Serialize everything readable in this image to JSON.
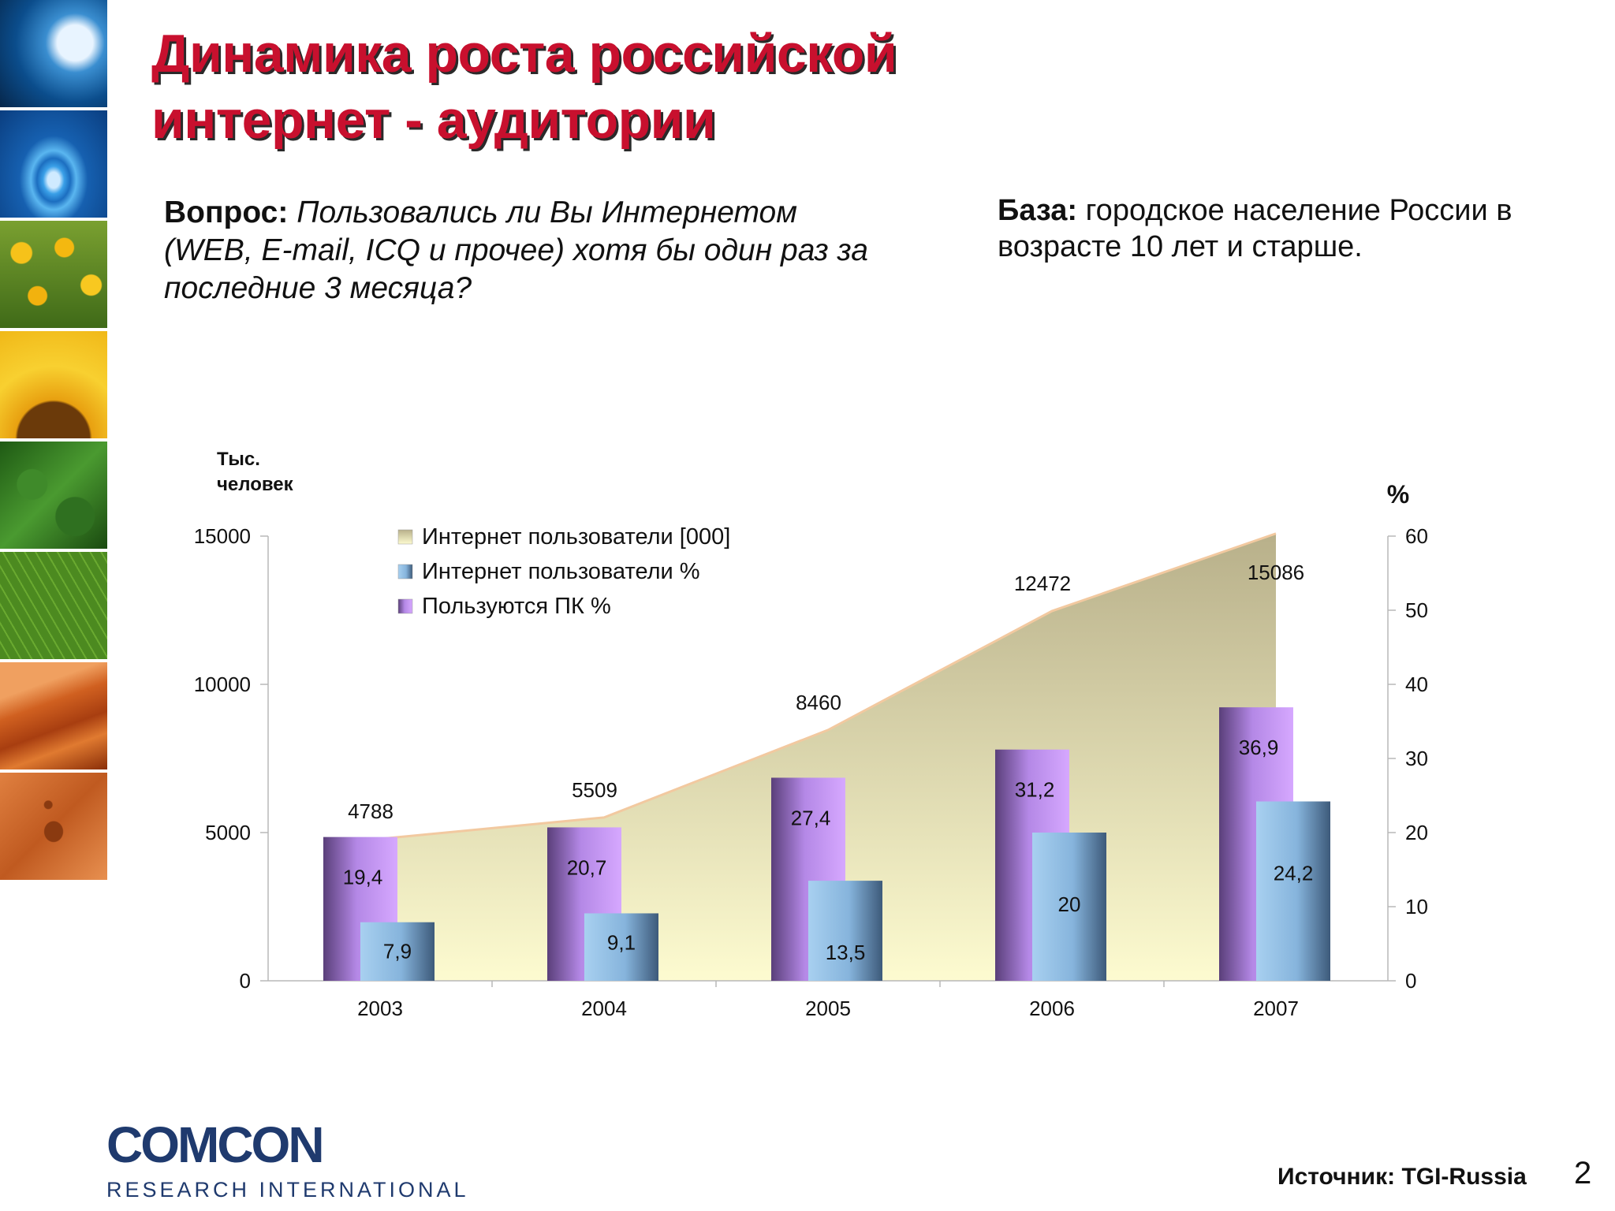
{
  "slide": {
    "title_line1": "Динамика роста российской",
    "title_line2": "интернет - аудитории",
    "question_label": "Вопрос:",
    "question_text": "Пользовались ли Вы Интернетом (WEB, E-mail, ICQ и прочее) хотя бы один раз за последние 3 месяца?",
    "base_label": "База:",
    "base_text": "городское население России в возрасте 10 лет и старше.",
    "source": "Источник: TGI-Russia",
    "page_number": "2",
    "logo_main": "COMCON",
    "logo_sub": "RESEARCH INTERNATIONAL"
  },
  "side_images": [
    "wave",
    "water-drop",
    "sunflower-field",
    "sunflower",
    "forest",
    "leaf",
    "desert-dunes",
    "footprint-sand"
  ],
  "chart_data": {
    "type": "bar",
    "categories": [
      "2003",
      "2004",
      "2005",
      "2006",
      "2007"
    ],
    "left_axis": {
      "label_line1": "Тыс.",
      "label_line2": "человек",
      "ylim": [
        0,
        15000
      ],
      "ticks": [
        "0",
        "5000",
        "10000",
        "15000"
      ]
    },
    "right_axis": {
      "label": "%",
      "ylim": [
        0,
        60
      ],
      "ticks": [
        "0",
        "10",
        "20",
        "30",
        "40",
        "50",
        "60"
      ]
    },
    "series": [
      {
        "name": "Интернет пользователи [000]",
        "type": "area",
        "axis": "left",
        "values": [
          4788,
          5509,
          8460,
          12472,
          15086
        ],
        "labels": [
          "4788",
          "5509",
          "8460",
          "12472",
          "15086"
        ]
      },
      {
        "name": "Интернет пользователи %",
        "type": "bar",
        "axis": "right",
        "values": [
          7.9,
          9.1,
          13.5,
          20,
          24.2
        ],
        "labels": [
          "7,9",
          "9,1",
          "13,5",
          "20",
          "24,2"
        ]
      },
      {
        "name": "Пользуются ПК %",
        "type": "bar",
        "axis": "right",
        "values": [
          19.4,
          20.7,
          27.4,
          31.2,
          36.9
        ],
        "labels": [
          "19,4",
          "20,7",
          "27,4",
          "31,2",
          "36,9"
        ]
      }
    ],
    "legend_order": [
      0,
      1,
      2
    ],
    "legend_position": "top-left",
    "colors": {
      "area_top": "#b8b08a",
      "area_bottom": "#fdfbd0",
      "area_line": "#f2c9a0",
      "blue_light": "#a8d0f0",
      "blue_dark": "#3d5a7a",
      "purple_light": "#d6a8ff",
      "purple_dark": "#5a3f7a"
    }
  }
}
